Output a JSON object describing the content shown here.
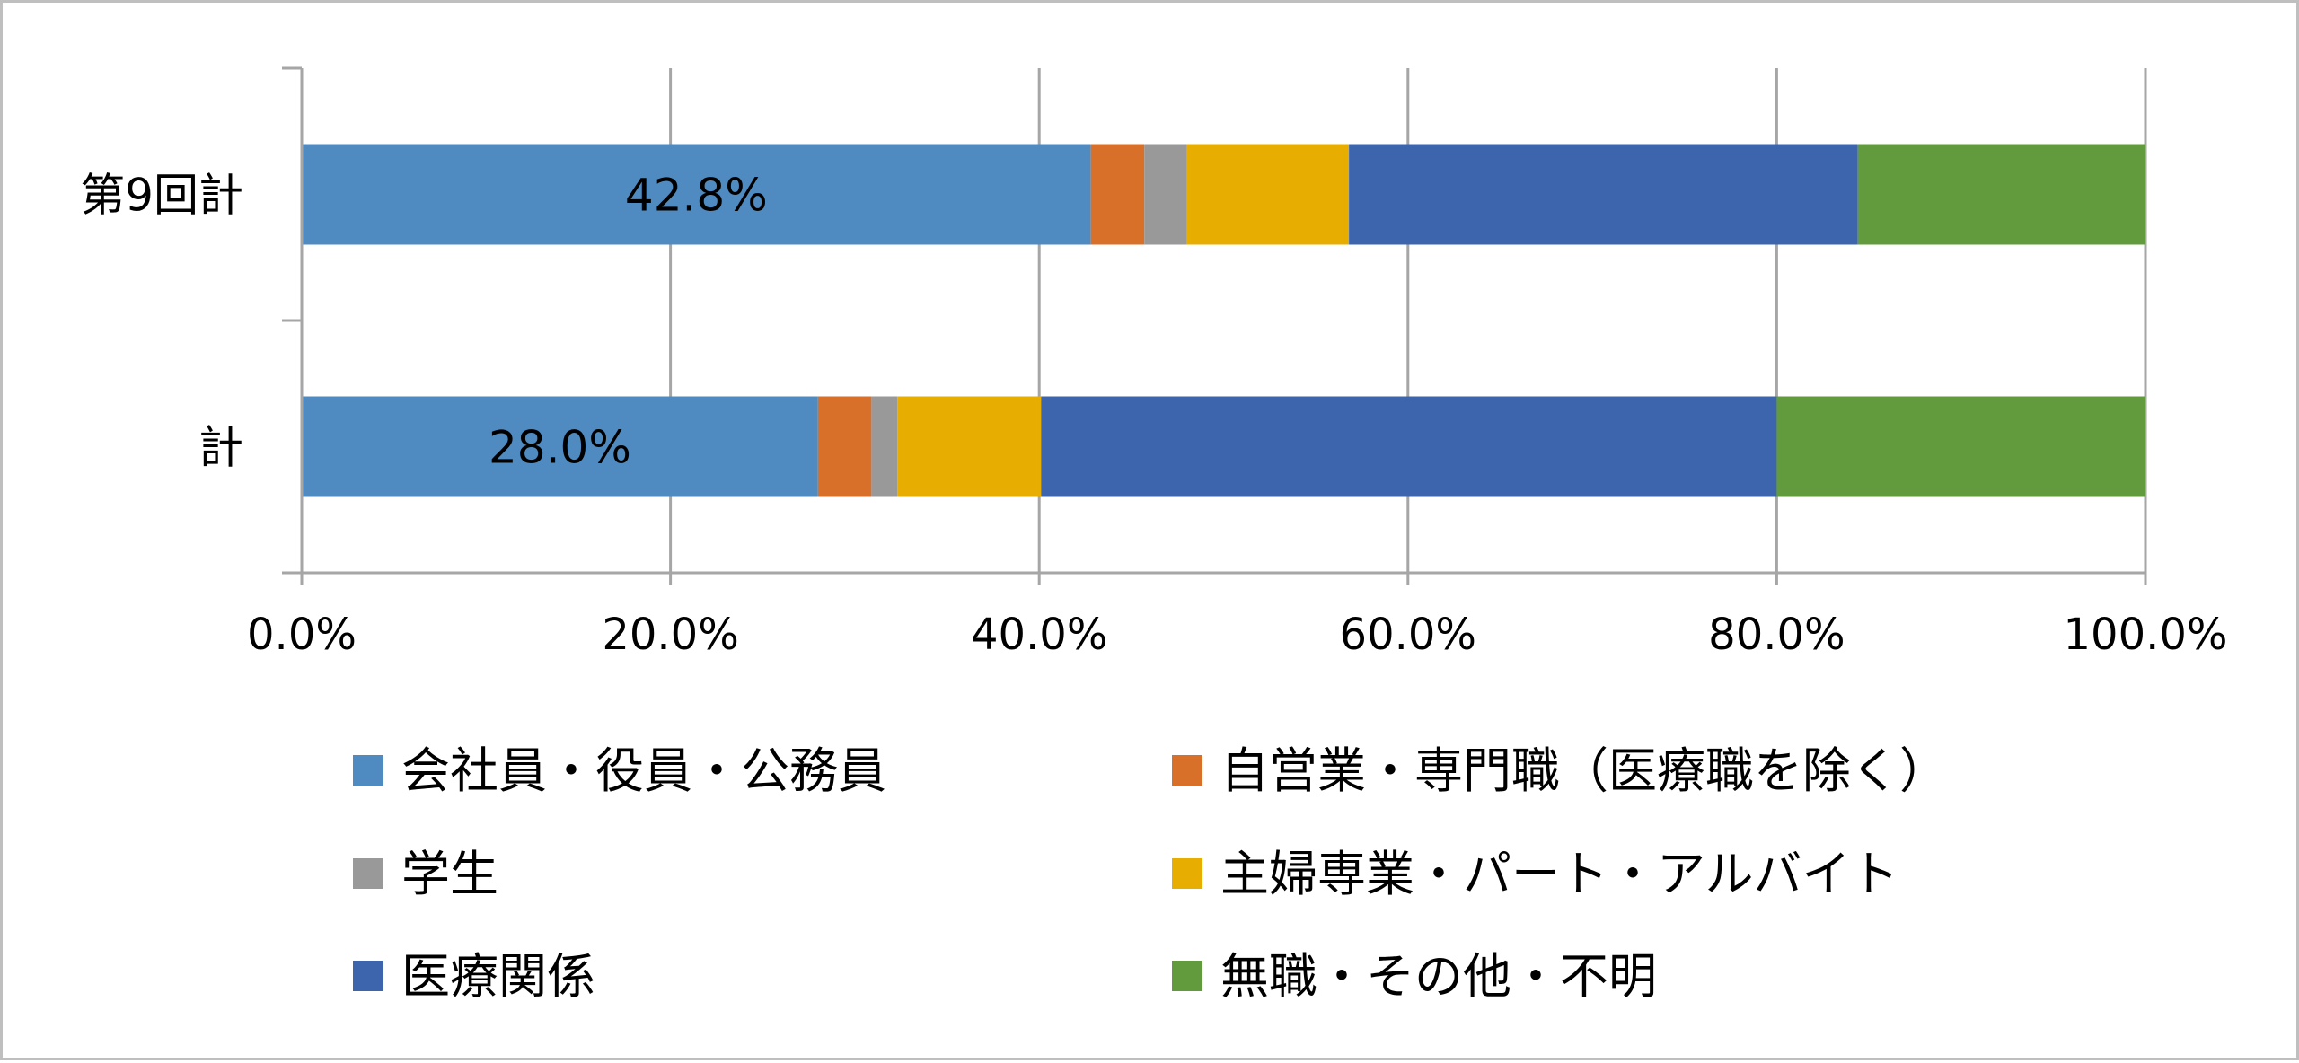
{
  "chart_data": {
    "type": "bar",
    "orientation": "horizontal",
    "stacked": "percent",
    "categories": [
      "第9回計",
      "計"
    ],
    "series": [
      {
        "name": "会社員・役員・公務員",
        "values": [
          42.8,
          28.0
        ],
        "color": "#4f8bc0"
      },
      {
        "name": "自営業・専門職（医療職を除く）",
        "values": [
          2.9,
          2.9
        ],
        "color": "#d8702a"
      },
      {
        "name": "学生",
        "values": [
          2.3,
          1.4
        ],
        "color": "#999999"
      },
      {
        "name": "主婦専業・パート・アルバイト",
        "values": [
          8.8,
          7.8
        ],
        "color": "#e7ad00"
      },
      {
        "name": "医療関係",
        "values": [
          27.6,
          39.9
        ],
        "color": "#3c65ae"
      },
      {
        "name": "無職・その他・不明",
        "values": [
          15.6,
          20.0
        ],
        "color": "#629b3e"
      }
    ],
    "data_labels": [
      {
        "category": "第9回計",
        "series": "会社員・役員・公務員",
        "text": "42.8%"
      },
      {
        "category": "計",
        "series": "会社員・役員・公務員",
        "text": "28.0%"
      }
    ],
    "xlim": [
      0,
      100
    ],
    "x_ticks": [
      "0.0%",
      "20.0%",
      "40.0%",
      "60.0%",
      "80.0%",
      "100.0%"
    ],
    "grid": "vertical",
    "legend_position": "bottom",
    "title": "",
    "xlabel": "",
    "ylabel": ""
  }
}
